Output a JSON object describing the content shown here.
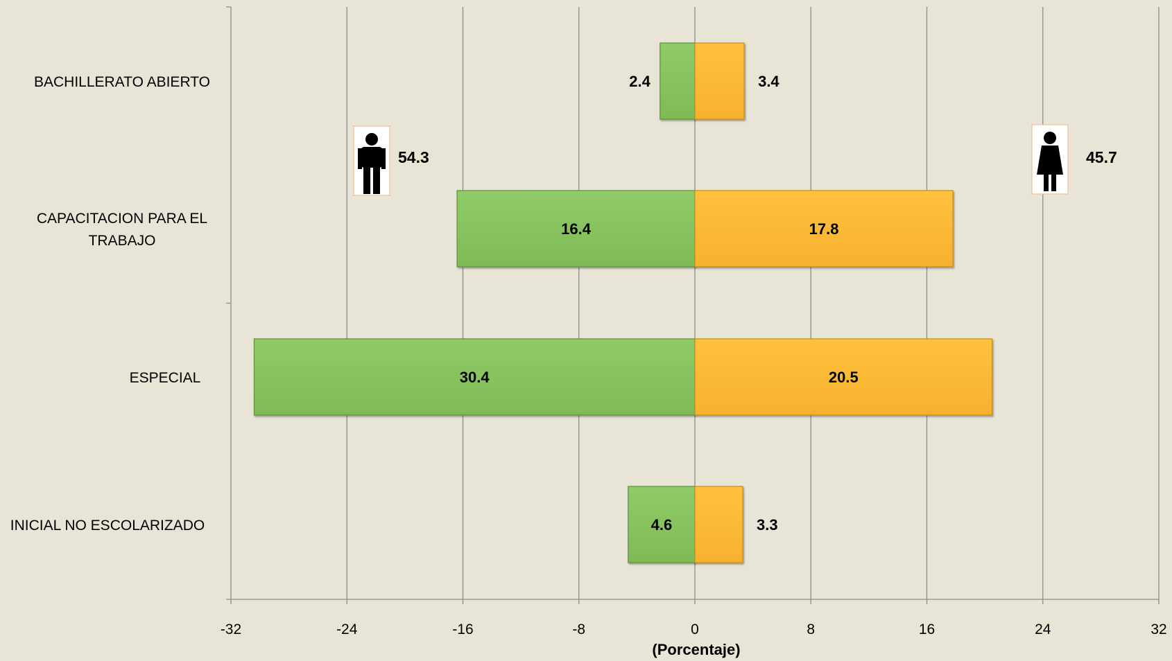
{
  "chart_data": {
    "type": "bar",
    "orientation": "horizontal",
    "stacking": "diverging",
    "categories": [
      "BACHILLERATO ABIERTO",
      "CAPACITACION  PARA EL TRABAJO",
      "ESPECIAL",
      "INICIAL NO ESCOLARIZADO"
    ],
    "category_lines": [
      [
        "BACHILLERATO ABIERTO"
      ],
      [
        "CAPACITACION  PARA EL",
        "TRABAJO"
      ],
      [
        "ESPECIAL"
      ],
      [
        "INICIAL NO ESCOLARIZADO"
      ]
    ],
    "series": [
      {
        "key": "hombres",
        "icon": "man-icon",
        "color": "#88c45f",
        "total": "54.3",
        "values": [
          -2.4,
          -16.4,
          -30.4,
          -4.6
        ],
        "labels": [
          "2.4",
          "16.4",
          "30.4",
          "4.6"
        ]
      },
      {
        "key": "mujeres",
        "icon": "woman-icon",
        "color": "#fdbc38",
        "total": "45.7",
        "values": [
          3.4,
          17.8,
          20.5,
          3.3
        ],
        "labels": [
          "3.4",
          "17.8",
          "20.5",
          "3.3"
        ]
      }
    ],
    "xlim": [
      -32,
      32
    ],
    "xticks": [
      -32,
      -24,
      -16,
      -8,
      0,
      8,
      16,
      24,
      32
    ],
    "xlabel": "(Porcentaje)",
    "ylabel": "",
    "grid": "vertical",
    "legend": "icons above bars"
  }
}
